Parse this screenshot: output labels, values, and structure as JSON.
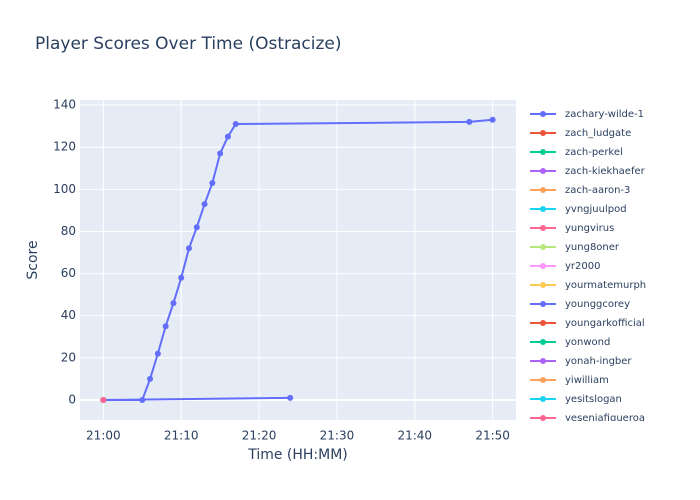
{
  "chart_data": {
    "type": "line",
    "title": "Player Scores Over Time (Ostracize)",
    "x_label": "Time (HH:MM)",
    "y_label": "Score",
    "xlim": [
      "20:57",
      "21:53"
    ],
    "xticks": [
      "21:00",
      "21:10",
      "21:20",
      "21:30",
      "21:40",
      "21:50"
    ],
    "ylim": [
      -9.5,
      142.4
    ],
    "yticks": [
      0,
      20,
      40,
      60,
      80,
      100,
      120,
      140
    ],
    "grid": true,
    "legend": "right",
    "series": [
      {
        "name": "zachary-wilde-1",
        "color": "#636efa",
        "x": [
          "21:00",
          "21:05",
          "21:06",
          "21:07",
          "21:08",
          "21:09",
          "21:10",
          "21:11",
          "21:12",
          "21:13",
          "21:14",
          "21:15",
          "21:16",
          "21:17",
          "21:47",
          "21:50"
        ],
        "values": [
          0,
          0,
          10,
          22,
          35,
          46,
          58,
          72,
          82,
          93,
          103,
          117,
          125,
          131,
          132,
          133
        ]
      },
      {
        "name": "zach_ludgate",
        "color": "#EF553B",
        "x": [
          "21:00"
        ],
        "values": [
          0
        ]
      },
      {
        "name": "zach-perkel",
        "color": "#00cc96",
        "x": [
          "21:00"
        ],
        "values": [
          0
        ]
      },
      {
        "name": "zach-kiekhaefer",
        "color": "#ab63fa",
        "x": [
          "21:00"
        ],
        "values": [
          0
        ]
      },
      {
        "name": "zach-aaron-3",
        "color": "#FFA15A",
        "x": [
          "21:00"
        ],
        "values": [
          0
        ]
      },
      {
        "name": "yvngjuulpod",
        "color": "#19d3f3",
        "x": [
          "21:00"
        ],
        "values": [
          0
        ]
      },
      {
        "name": "yungvirus",
        "color": "#FF6692",
        "x": [
          "21:00"
        ],
        "values": [
          0
        ]
      },
      {
        "name": "yung8oner",
        "color": "#B6E880",
        "x": [
          "21:00"
        ],
        "values": [
          0
        ]
      },
      {
        "name": "yr2000",
        "color": "#FF97FF",
        "x": [
          "21:00"
        ],
        "values": [
          0
        ]
      },
      {
        "name": "yourmatemurph",
        "color": "#FECB52",
        "x": [
          "21:00"
        ],
        "values": [
          0
        ]
      },
      {
        "name": "younggcorey",
        "color": "#636efa",
        "x": [
          "21:00",
          "21:24"
        ],
        "values": [
          0,
          1
        ]
      },
      {
        "name": "youngarkofficial",
        "color": "#EF553B",
        "x": [
          "21:00"
        ],
        "values": [
          0
        ]
      },
      {
        "name": "yonwond",
        "color": "#00cc96",
        "x": [
          "21:00"
        ],
        "values": [
          0
        ]
      },
      {
        "name": "yonah-ingber",
        "color": "#ab63fa",
        "x": [
          "21:00"
        ],
        "values": [
          0
        ]
      },
      {
        "name": "yiwilliam",
        "color": "#FFA15A",
        "x": [
          "21:00"
        ],
        "values": [
          0
        ]
      },
      {
        "name": "yesitslogan",
        "color": "#19d3f3",
        "x": [
          "21:00"
        ],
        "values": [
          0
        ]
      },
      {
        "name": "yeseniafigueroa",
        "color": "#FF6692",
        "x": [
          "21:00"
        ],
        "values": [
          0
        ]
      }
    ]
  }
}
